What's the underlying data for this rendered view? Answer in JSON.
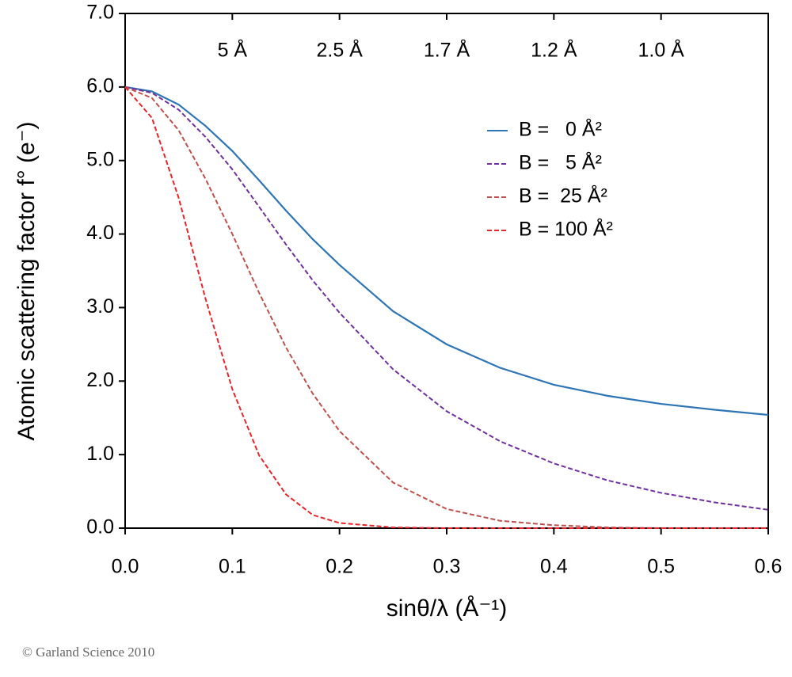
{
  "chart_data": {
    "type": "line",
    "xlabel": "sinθ/λ (Å⁻¹)",
    "ylabel": "Atomic scattering factor f° (e⁻)",
    "annotation": "© Garland Science 2010",
    "x": [
      0,
      0.025,
      0.05,
      0.075,
      0.1,
      0.125,
      0.15,
      0.175,
      0.2,
      0.25,
      0.3,
      0.35,
      0.4,
      0.45,
      0.5,
      0.55,
      0.6
    ],
    "series": [
      {
        "name": "B =   0 Å²",
        "color": "#2e75b6",
        "dash": false,
        "values": [
          6.0,
          5.94,
          5.76,
          5.47,
          5.13,
          4.73,
          4.32,
          3.93,
          3.58,
          2.95,
          2.5,
          2.18,
          1.95,
          1.8,
          1.69,
          1.61,
          1.54
        ]
      },
      {
        "name": "B =   5 Å²",
        "color": "#7030a0",
        "dash": true,
        "values": [
          6.0,
          5.92,
          5.69,
          5.32,
          4.88,
          4.37,
          3.86,
          3.37,
          2.93,
          2.16,
          1.59,
          1.18,
          0.88,
          0.65,
          0.48,
          0.35,
          0.25
        ]
      },
      {
        "name": "B =  25 Å²",
        "color": "#c0504d",
        "dash": true,
        "values": [
          6.0,
          5.85,
          5.41,
          4.75,
          4.0,
          3.2,
          2.46,
          1.83,
          1.32,
          0.62,
          0.26,
          0.1,
          0.04,
          0.01,
          0,
          0,
          0
        ]
      },
      {
        "name": "B = 100 Å²",
        "color": "#e8262a",
        "dash": true,
        "values": [
          6.0,
          5.58,
          4.49,
          3.12,
          1.89,
          0.99,
          0.46,
          0.18,
          0.07,
          0.01,
          0,
          0,
          0,
          0,
          0,
          0,
          0
        ]
      }
    ],
    "xlim": [
      0,
      0.6
    ],
    "ylim": [
      0,
      7
    ],
    "xticks": [
      {
        "value": 0,
        "label": "0.0"
      },
      0.1,
      0.2,
      0.3,
      0.4,
      0.5,
      0.6
    ],
    "yticks": [
      {
        "value": 0,
        "label": "0.0"
      },
      {
        "value": 1,
        "label": "1.0"
      },
      {
        "value": 2,
        "label": "2.0"
      },
      {
        "value": 3,
        "label": "3.0"
      },
      {
        "value": 4,
        "label": "4.0"
      },
      {
        "value": 5,
        "label": "5.0"
      },
      {
        "value": 6,
        "label": "6.0"
      },
      {
        "value": 7,
        "label": "7.0"
      }
    ],
    "x2ticks": [
      {
        "value": 0.1,
        "label": "5 Å"
      },
      {
        "value": 0.2,
        "label": "2.5 Å"
      },
      {
        "value": 0.3,
        "label": "1.7 Å"
      },
      {
        "value": 0.4,
        "label": "1.2 Å"
      },
      {
        "value": 0.5,
        "label": "1.0 Å"
      }
    ],
    "legend": "upper right",
    "grid": false
  }
}
